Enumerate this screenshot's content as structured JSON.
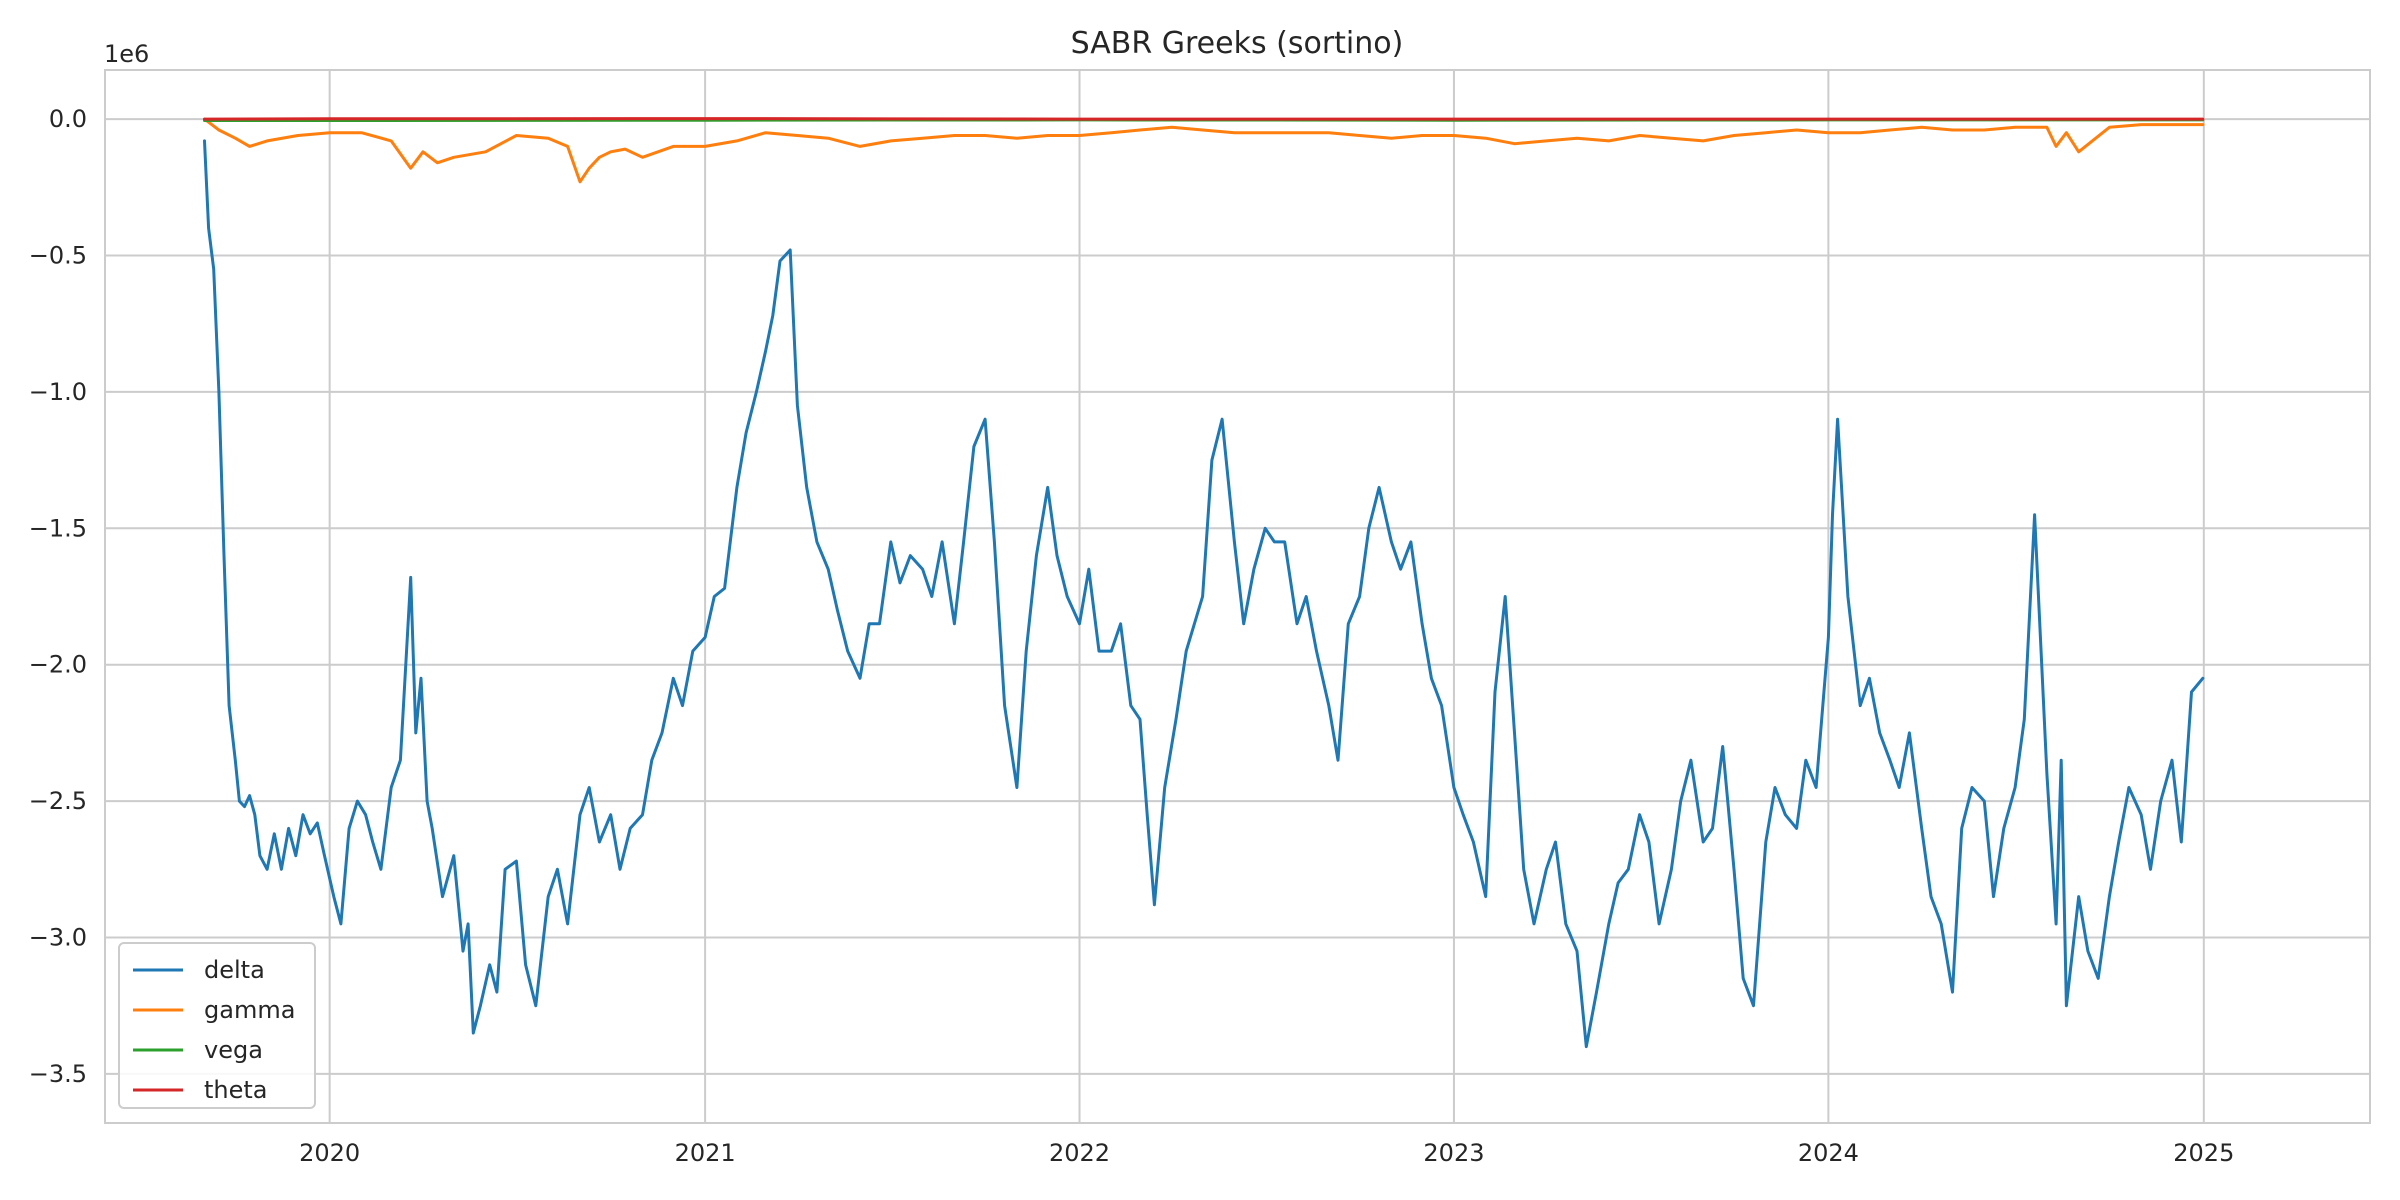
{
  "chart_data": {
    "type": "line",
    "title": "SABR Greeks (sortino)",
    "xlabel": "",
    "ylabel": "",
    "y_offset_label": "1e6",
    "xlim": [
      "2019-05-27",
      "2025-06-12"
    ],
    "ylim": [
      -3.68,
      0.18
    ],
    "x_ticks": [
      "2020-01-01",
      "2021-01-01",
      "2022-01-01",
      "2023-01-01",
      "2024-01-01",
      "2025-01-01"
    ],
    "x_tick_labels": [
      "2020",
      "2021",
      "2022",
      "2023",
      "2024",
      "2025"
    ],
    "y_ticks": [
      0.0,
      -0.5,
      -1.0,
      -1.5,
      -2.0,
      -2.5,
      -3.0,
      -3.5
    ],
    "y_tick_labels": [
      "0.0",
      "−0.5",
      "−1.0",
      "−1.5",
      "−2.0",
      "−2.5",
      "−3.0",
      "−3.5"
    ],
    "grid": true,
    "legend_position": "lower-left",
    "series": [
      {
        "name": "delta",
        "color": "#1f77b4",
        "x": [
          "2019-09-01",
          "2019-09-05",
          "2019-09-10",
          "2019-09-15",
          "2019-09-20",
          "2019-09-25",
          "2019-10-01",
          "2019-10-05",
          "2019-10-10",
          "2019-10-15",
          "2019-10-20",
          "2019-10-25",
          "2019-11-01",
          "2019-11-08",
          "2019-11-15",
          "2019-11-22",
          "2019-11-29",
          "2019-12-06",
          "2019-12-13",
          "2019-12-20",
          "2019-12-27",
          "2020-01-05",
          "2020-01-12",
          "2020-01-20",
          "2020-01-28",
          "2020-02-05",
          "2020-02-12",
          "2020-02-20",
          "2020-03-01",
          "2020-03-10",
          "2020-03-20",
          "2020-03-25",
          "2020-03-30",
          "2020-04-05",
          "2020-04-10",
          "2020-04-20",
          "2020-05-01",
          "2020-05-10",
          "2020-05-15",
          "2020-05-20",
          "2020-05-27",
          "2020-06-05",
          "2020-06-12",
          "2020-06-20",
          "2020-07-01",
          "2020-07-10",
          "2020-07-20",
          "2020-08-01",
          "2020-08-10",
          "2020-08-20",
          "2020-09-01",
          "2020-09-10",
          "2020-09-20",
          "2020-10-01",
          "2020-10-10",
          "2020-10-20",
          "2020-11-01",
          "2020-11-10",
          "2020-11-20",
          "2020-12-01",
          "2020-12-10",
          "2020-12-20",
          "2021-01-01",
          "2021-01-10",
          "2021-01-20",
          "2021-02-01",
          "2021-02-10",
          "2021-02-20",
          "2021-03-01",
          "2021-03-08",
          "2021-03-15",
          "2021-03-25",
          "2021-04-01",
          "2021-04-10",
          "2021-04-20",
          "2021-05-01",
          "2021-05-10",
          "2021-05-20",
          "2021-06-01",
          "2021-06-10",
          "2021-06-20",
          "2021-07-01",
          "2021-07-10",
          "2021-07-20",
          "2021-08-01",
          "2021-08-10",
          "2021-08-20",
          "2021-09-01",
          "2021-09-10",
          "2021-09-20",
          "2021-10-01",
          "2021-10-10",
          "2021-10-20",
          "2021-11-01",
          "2021-11-10",
          "2021-11-20",
          "2021-12-01",
          "2021-12-10",
          "2021-12-20",
          "2022-01-01",
          "2022-01-10",
          "2022-01-20",
          "2022-02-01",
          "2022-02-10",
          "2022-02-20",
          "2022-03-01",
          "2022-03-08",
          "2022-03-15",
          "2022-03-25",
          "2022-04-05",
          "2022-04-15",
          "2022-05-01",
          "2022-05-10",
          "2022-05-20",
          "2022-06-01",
          "2022-06-10",
          "2022-06-20",
          "2022-07-01",
          "2022-07-10",
          "2022-07-20",
          "2022-08-01",
          "2022-08-10",
          "2022-08-20",
          "2022-09-01",
          "2022-09-10",
          "2022-09-20",
          "2022-10-01",
          "2022-10-10",
          "2022-10-20",
          "2022-11-01",
          "2022-11-10",
          "2022-11-20",
          "2022-12-01",
          "2022-12-10",
          "2022-12-20",
          "2023-01-01",
          "2023-01-10",
          "2023-01-20",
          "2023-02-01",
          "2023-02-10",
          "2023-02-20",
          "2023-03-01",
          "2023-03-10",
          "2023-03-20",
          "2023-04-01",
          "2023-04-10",
          "2023-04-20",
          "2023-05-01",
          "2023-05-10",
          "2023-05-20",
          "2023-06-01",
          "2023-06-10",
          "2023-06-20",
          "2023-07-01",
          "2023-07-10",
          "2023-07-20",
          "2023-08-01",
          "2023-08-10",
          "2023-08-20",
          "2023-09-01",
          "2023-09-10",
          "2023-09-20",
          "2023-10-01",
          "2023-10-10",
          "2023-10-20",
          "2023-11-01",
          "2023-11-10",
          "2023-11-20",
          "2023-12-01",
          "2023-12-10",
          "2023-12-20",
          "2024-01-01",
          "2024-01-05",
          "2024-01-10",
          "2024-01-20",
          "2024-02-01",
          "2024-02-10",
          "2024-02-20",
          "2024-03-01",
          "2024-03-10",
          "2024-03-20",
          "2024-04-01",
          "2024-04-10",
          "2024-04-20",
          "2024-05-01",
          "2024-05-10",
          "2024-05-20",
          "2024-06-01",
          "2024-06-10",
          "2024-06-20",
          "2024-07-01",
          "2024-07-10",
          "2024-07-20",
          "2024-08-01",
          "2024-08-10",
          "2024-08-15",
          "2024-08-20",
          "2024-09-01",
          "2024-09-10",
          "2024-09-20",
          "2024-10-01",
          "2024-10-10",
          "2024-10-20",
          "2024-11-01",
          "2024-11-10",
          "2024-11-20",
          "2024-12-01",
          "2024-12-10",
          "2024-12-20",
          "2024-12-31"
        ],
        "y": [
          -0.08,
          -0.4,
          -0.55,
          -1.0,
          -1.6,
          -2.15,
          -2.35,
          -2.5,
          -2.52,
          -2.48,
          -2.55,
          -2.7,
          -2.75,
          -2.62,
          -2.75,
          -2.6,
          -2.7,
          -2.55,
          -2.62,
          -2.58,
          -2.7,
          -2.85,
          -2.95,
          -2.6,
          -2.5,
          -2.55,
          -2.65,
          -2.75,
          -2.45,
          -2.35,
          -1.68,
          -2.25,
          -2.05,
          -2.5,
          -2.6,
          -2.85,
          -2.7,
          -3.05,
          -2.95,
          -3.35,
          -3.25,
          -3.1,
          -3.2,
          -2.75,
          -2.72,
          -3.1,
          -3.25,
          -2.85,
          -2.75,
          -2.95,
          -2.55,
          -2.45,
          -2.65,
          -2.55,
          -2.75,
          -2.6,
          -2.55,
          -2.35,
          -2.25,
          -2.05,
          -2.15,
          -1.95,
          -1.9,
          -1.75,
          -1.72,
          -1.35,
          -1.15,
          -1.0,
          -0.85,
          -0.72,
          -0.52,
          -0.48,
          -1.05,
          -1.35,
          -1.55,
          -1.65,
          -1.8,
          -1.95,
          -2.05,
          -1.85,
          -1.85,
          -1.55,
          -1.7,
          -1.6,
          -1.65,
          -1.75,
          -1.55,
          -1.85,
          -1.55,
          -1.2,
          -1.1,
          -1.55,
          -2.15,
          -2.45,
          -1.95,
          -1.6,
          -1.35,
          -1.6,
          -1.75,
          -1.85,
          -1.65,
          -1.95,
          -1.95,
          -1.85,
          -2.15,
          -2.2,
          -2.55,
          -2.88,
          -2.45,
          -2.2,
          -1.95,
          -1.75,
          -1.25,
          -1.1,
          -1.55,
          -1.85,
          -1.65,
          -1.5,
          -1.55,
          -1.55,
          -1.85,
          -1.75,
          -1.95,
          -2.15,
          -2.35,
          -1.85,
          -1.75,
          -1.5,
          -1.35,
          -1.55,
          -1.65,
          -1.55,
          -1.85,
          -2.05,
          -2.15,
          -2.45,
          -2.55,
          -2.65,
          -2.85,
          -2.1,
          -1.75,
          -2.25,
          -2.75,
          -2.95,
          -2.75,
          -2.65,
          -2.95,
          -3.05,
          -3.4,
          -3.2,
          -2.95,
          -2.8,
          -2.75,
          -2.55,
          -2.65,
          -2.95,
          -2.75,
          -2.5,
          -2.35,
          -2.65,
          -2.6,
          -2.3,
          -2.75,
          -3.15,
          -3.25,
          -2.65,
          -2.45,
          -2.55,
          -2.6,
          -2.35,
          -2.45,
          -1.9,
          -1.45,
          -1.1,
          -1.75,
          -2.15,
          -2.05,
          -2.25,
          -2.35,
          -2.45,
          -2.25,
          -2.6,
          -2.85,
          -2.95,
          -3.2,
          -2.6,
          -2.45,
          -2.5,
          -2.85,
          -2.6,
          -2.45,
          -2.2,
          -1.45,
          -2.4,
          -2.95,
          -2.35,
          -3.25,
          -2.85,
          -3.05,
          -3.15,
          -2.85,
          -2.65,
          -2.45,
          -2.55,
          -2.75,
          -2.5,
          -2.35,
          -2.65,
          -2.1,
          -2.05
        ]
      },
      {
        "name": "gamma",
        "color": "#ff7f0e",
        "x": [
          "2019-09-01",
          "2019-09-15",
          "2019-10-01",
          "2019-10-15",
          "2019-11-01",
          "2019-12-01",
          "2020-01-01",
          "2020-02-01",
          "2020-03-01",
          "2020-03-20",
          "2020-04-01",
          "2020-04-15",
          "2020-05-01",
          "2020-06-01",
          "2020-07-01",
          "2020-08-01",
          "2020-08-20",
          "2020-09-01",
          "2020-09-10",
          "2020-09-20",
          "2020-10-01",
          "2020-10-15",
          "2020-11-01",
          "2020-12-01",
          "2021-01-01",
          "2021-02-01",
          "2021-03-01",
          "2021-04-01",
          "2021-05-01",
          "2021-06-01",
          "2021-07-01",
          "2021-08-01",
          "2021-09-01",
          "2021-10-01",
          "2021-11-01",
          "2021-12-01",
          "2022-01-01",
          "2022-02-01",
          "2022-03-01",
          "2022-04-01",
          "2022-05-01",
          "2022-06-01",
          "2022-07-01",
          "2022-08-01",
          "2022-09-01",
          "2022-10-01",
          "2022-11-01",
          "2022-12-01",
          "2023-01-01",
          "2023-02-01",
          "2023-03-01",
          "2023-04-01",
          "2023-05-01",
          "2023-06-01",
          "2023-07-01",
          "2023-08-01",
          "2023-09-01",
          "2023-10-01",
          "2023-11-01",
          "2023-12-01",
          "2024-01-01",
          "2024-02-01",
          "2024-03-01",
          "2024-04-01",
          "2024-05-01",
          "2024-06-01",
          "2024-07-01",
          "2024-08-01",
          "2024-08-10",
          "2024-08-20",
          "2024-09-01",
          "2024-10-01",
          "2024-11-01",
          "2024-12-01",
          "2024-12-31"
        ],
        "y": [
          0.0,
          -0.04,
          -0.07,
          -0.1,
          -0.08,
          -0.06,
          -0.05,
          -0.05,
          -0.08,
          -0.18,
          -0.12,
          -0.16,
          -0.14,
          -0.12,
          -0.06,
          -0.07,
          -0.1,
          -0.23,
          -0.18,
          -0.14,
          -0.12,
          -0.11,
          -0.14,
          -0.1,
          -0.1,
          -0.08,
          -0.05,
          -0.06,
          -0.07,
          -0.1,
          -0.08,
          -0.07,
          -0.06,
          -0.06,
          -0.07,
          -0.06,
          -0.06,
          -0.05,
          -0.04,
          -0.03,
          -0.04,
          -0.05,
          -0.05,
          -0.05,
          -0.05,
          -0.06,
          -0.07,
          -0.06,
          -0.06,
          -0.07,
          -0.09,
          -0.08,
          -0.07,
          -0.08,
          -0.06,
          -0.07,
          -0.08,
          -0.06,
          -0.05,
          -0.04,
          -0.05,
          -0.05,
          -0.04,
          -0.03,
          -0.04,
          -0.04,
          -0.03,
          -0.03,
          -0.1,
          -0.05,
          -0.12,
          -0.03,
          -0.02,
          -0.02,
          -0.02
        ]
      },
      {
        "name": "vega",
        "color": "#2ca02c",
        "x": [
          "2019-09-01",
          "2020-01-01",
          "2021-01-01",
          "2022-01-01",
          "2023-01-01",
          "2024-01-01",
          "2024-12-31"
        ],
        "y": [
          -0.005,
          -0.005,
          -0.004,
          -0.003,
          -0.004,
          -0.003,
          -0.003
        ]
      },
      {
        "name": "theta",
        "color": "#d62728",
        "x": [
          "2019-09-01",
          "2020-01-01",
          "2021-01-01",
          "2022-01-01",
          "2023-01-01",
          "2024-01-01",
          "2024-12-31"
        ],
        "y": [
          0.0,
          0.001,
          0.002,
          0.0,
          0.0,
          0.0,
          0.0
        ]
      }
    ]
  }
}
